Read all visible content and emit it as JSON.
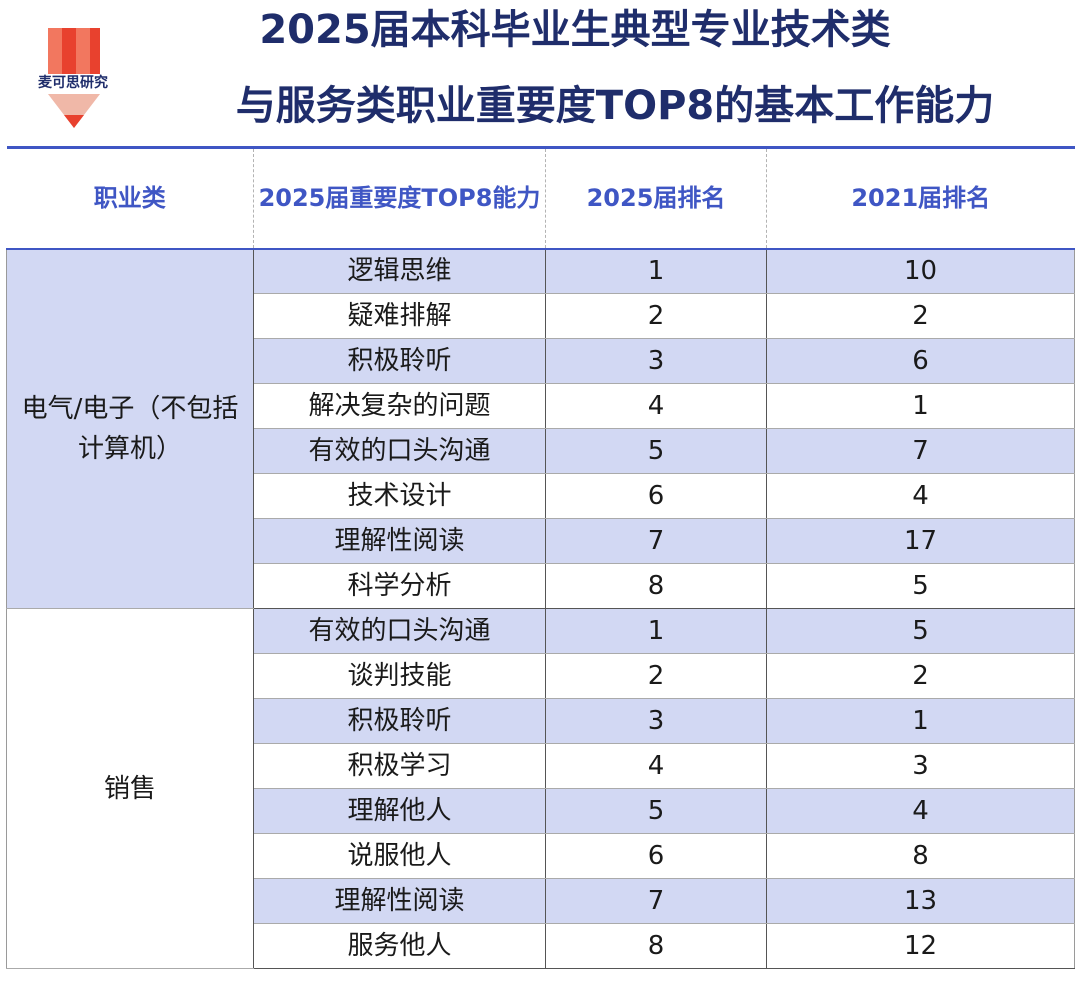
{
  "logo": {
    "text": "麦可思研究",
    "colors": {
      "pencil": "#e8412e",
      "pencil_light": "#f2775f",
      "heart": "#f0b8a8"
    }
  },
  "title": {
    "line1": "2025届本科毕业生典型专业技术类",
    "line2": "与服务类职业重要度TOP8的基本工作能力"
  },
  "colors": {
    "title": "#1f2d6b",
    "header_text": "#3f56c4",
    "header_rule": "#3f56c4",
    "shade": "#d2d8f3"
  },
  "table": {
    "headers": [
      "职业类",
      "2025届重要度TOP8能力",
      "2025届排名",
      "2021届排名"
    ],
    "groups": [
      {
        "name": "电气/电子（不包括计算机）",
        "rows": [
          {
            "ability": "逻辑思维",
            "rank2025": "1",
            "rank2021": "10"
          },
          {
            "ability": "疑难排解",
            "rank2025": "2",
            "rank2021": "2"
          },
          {
            "ability": "积极聆听",
            "rank2025": "3",
            "rank2021": "6"
          },
          {
            "ability": "解决复杂的问题",
            "rank2025": "4",
            "rank2021": "1"
          },
          {
            "ability": "有效的口头沟通",
            "rank2025": "5",
            "rank2021": "7"
          },
          {
            "ability": "技术设计",
            "rank2025": "6",
            "rank2021": "4"
          },
          {
            "ability": "理解性阅读",
            "rank2025": "7",
            "rank2021": "17"
          },
          {
            "ability": "科学分析",
            "rank2025": "8",
            "rank2021": "5"
          }
        ]
      },
      {
        "name": "销售",
        "rows": [
          {
            "ability": "有效的口头沟通",
            "rank2025": "1",
            "rank2021": "5"
          },
          {
            "ability": "谈判技能",
            "rank2025": "2",
            "rank2021": "2"
          },
          {
            "ability": "积极聆听",
            "rank2025": "3",
            "rank2021": "1"
          },
          {
            "ability": "积极学习",
            "rank2025": "4",
            "rank2021": "3"
          },
          {
            "ability": "理解他人",
            "rank2025": "5",
            "rank2021": "4"
          },
          {
            "ability": "说服他人",
            "rank2025": "6",
            "rank2021": "8"
          },
          {
            "ability": "理解性阅读",
            "rank2025": "7",
            "rank2021": "13"
          },
          {
            "ability": "服务他人",
            "rank2025": "8",
            "rank2021": "12"
          }
        ]
      }
    ]
  }
}
